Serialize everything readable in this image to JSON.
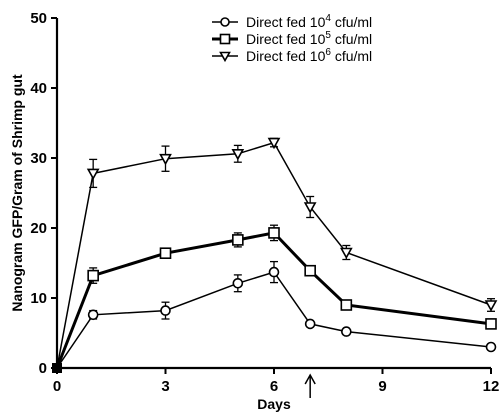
{
  "chart_data": {
    "type": "line",
    "xlabel": "Days",
    "ylabel": "Nanogram GFP/Gram of Shrimp gut",
    "xlim": [
      0,
      12
    ],
    "ylim": [
      0,
      50
    ],
    "xticks": [
      "0",
      "3",
      "6",
      "9",
      "12"
    ],
    "yticks": [
      "0",
      "10",
      "20",
      "30",
      "40",
      "50"
    ],
    "legend_position": "top-right",
    "annotation": "arrow at day 7 on x-axis",
    "x": [
      0,
      1,
      3,
      5,
      6,
      7,
      8,
      12
    ],
    "series": [
      {
        "name": "Direct fed 10^4 cfu/ml",
        "legend_base": "Direct fed 10",
        "legend_exp": "4",
        "legend_unit": " cfu/ml",
        "marker": "circle",
        "line_width": 1.5,
        "values": [
          0,
          7.6,
          8.2,
          12.1,
          13.7,
          6.3,
          5.2,
          3.0
        ],
        "errors": [
          0,
          0.6,
          1.2,
          1.2,
          1.5,
          0.3,
          0.3,
          0.3
        ]
      },
      {
        "name": "Direct fed 10^5 cfu/ml",
        "legend_base": "Direct fed 10",
        "legend_exp": "5",
        "legend_unit": " cfu/ml",
        "marker": "square",
        "line_width": 3,
        "values": [
          0,
          13.2,
          16.4,
          18.3,
          19.3,
          13.9,
          9.0,
          6.3
        ],
        "errors": [
          0,
          1.1,
          0.3,
          1.0,
          1.1,
          0.6,
          0.5,
          0.6
        ]
      },
      {
        "name": "Direct fed 10^6 cfu/ml",
        "legend_base": "Direct fed 10",
        "legend_exp": "6",
        "legend_unit": " cfu/ml",
        "marker": "triangle-down",
        "line_width": 1.5,
        "values": [
          0,
          27.8,
          29.9,
          30.6,
          32.2,
          23.0,
          16.5,
          9.0
        ],
        "errors": [
          0,
          2.0,
          1.8,
          1.2,
          0.6,
          1.5,
          1.0,
          0.9
        ]
      }
    ]
  }
}
